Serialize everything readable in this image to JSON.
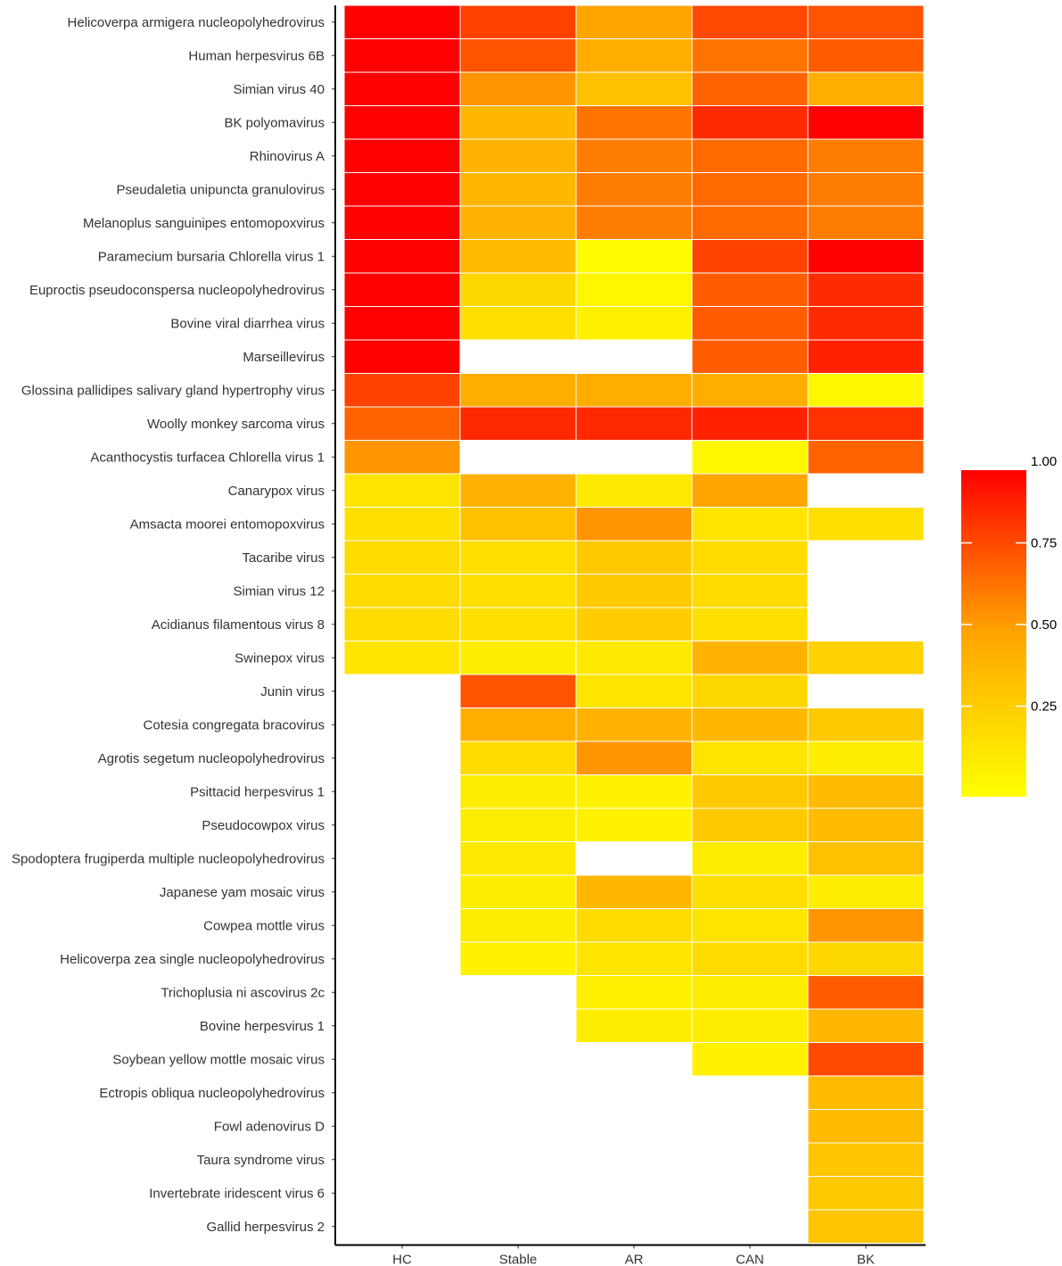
{
  "chart_data": {
    "type": "heatmap",
    "title": "",
    "xlabel": "",
    "ylabel": "",
    "columns": [
      "HC",
      "Stable",
      "AR",
      "CAN",
      "BK"
    ],
    "rows": [
      "Helicoverpa armigera nucleopolyhedrovirus",
      "Human herpesvirus 6B",
      "Simian virus 40",
      "BK polyomavirus",
      "Rhinovirus A",
      "Pseudaletia unipuncta granulovirus",
      "Melanoplus sanguinipes entomopoxvirus",
      "Paramecium bursaria Chlorella virus 1",
      "Euproctis pseudoconspersa nucleopolyhedrovirus",
      "Bovine viral diarrhea virus",
      "Marseillevirus",
      "Glossina pallidipes salivary gland hypertrophy virus",
      "Woolly monkey sarcoma virus",
      "Acanthocystis turfacea Chlorella virus 1",
      "Canarypox virus",
      "Amsacta moorei entomopoxvirus",
      "Tacaribe virus",
      "Simian virus 12",
      "Acidianus filamentous virus 8",
      "Swinepox virus",
      "Junin virus",
      "Cotesia congregata bracovirus",
      "Agrotis segetum nucleopolyhedrovirus",
      "Psittacid herpesvirus 1",
      "Pseudocowpox virus",
      "Spodoptera frugiperda multiple nucleopolyhedrovirus",
      "Japanese yam mosaic virus",
      "Cowpea mottle virus",
      "Helicoverpa zea single nucleopolyhedrovirus",
      "Trichoplusia ni ascovirus 2c",
      "Bovine herpesvirus 1",
      "Soybean yellow mottle mosaic virus",
      "Ectropis obliqua nucleopolyhedrovirus",
      "Fowl adenovirus D",
      "Taura syndrome virus",
      "Invertebrate iridescent virus 6",
      "Gallid herpesvirus 2"
    ],
    "values": [
      [
        1.0,
        0.8,
        0.5,
        0.78,
        0.75
      ],
      [
        1.0,
        0.75,
        0.45,
        0.65,
        0.72
      ],
      [
        1.0,
        0.55,
        0.35,
        0.7,
        0.45
      ],
      [
        1.0,
        0.4,
        0.65,
        0.87,
        1.0
      ],
      [
        1.0,
        0.42,
        0.62,
        0.68,
        0.62
      ],
      [
        1.0,
        0.4,
        0.62,
        0.68,
        0.62
      ],
      [
        1.0,
        0.42,
        0.62,
        0.68,
        0.62
      ],
      [
        1.0,
        0.38,
        0.02,
        0.8,
        1.0
      ],
      [
        1.0,
        0.22,
        0.05,
        0.72,
        0.87
      ],
      [
        1.0,
        0.18,
        0.08,
        0.72,
        0.87
      ],
      [
        1.0,
        null,
        null,
        0.72,
        0.9
      ],
      [
        0.8,
        0.45,
        0.45,
        0.45,
        0.05
      ],
      [
        0.7,
        0.88,
        0.88,
        0.9,
        0.85
      ],
      [
        0.55,
        null,
        null,
        0.05,
        0.7
      ],
      [
        0.15,
        0.42,
        0.12,
        0.5,
        null
      ],
      [
        0.18,
        0.35,
        0.55,
        0.15,
        0.18
      ],
      [
        0.2,
        0.18,
        0.3,
        0.2,
        null
      ],
      [
        0.2,
        0.18,
        0.3,
        0.2,
        null
      ],
      [
        0.2,
        0.18,
        0.28,
        0.18,
        null
      ],
      [
        0.15,
        0.1,
        0.12,
        0.42,
        0.25
      ],
      [
        null,
        0.75,
        0.15,
        0.22,
        null
      ],
      [
        null,
        0.45,
        0.42,
        0.4,
        0.3
      ],
      [
        null,
        0.2,
        0.55,
        0.15,
        0.1
      ],
      [
        null,
        0.1,
        0.08,
        0.3,
        0.38
      ],
      [
        null,
        0.1,
        0.08,
        0.3,
        0.38
      ],
      [
        null,
        0.12,
        null,
        0.1,
        0.35
      ],
      [
        null,
        0.1,
        0.4,
        0.18,
        0.1
      ],
      [
        null,
        0.1,
        0.2,
        0.15,
        0.55
      ],
      [
        null,
        0.08,
        0.15,
        0.2,
        0.22
      ],
      [
        null,
        null,
        0.08,
        0.1,
        0.72
      ],
      [
        null,
        null,
        0.1,
        0.1,
        0.4
      ],
      [
        null,
        null,
        null,
        0.08,
        0.78
      ],
      [
        null,
        null,
        null,
        null,
        0.38
      ],
      [
        null,
        null,
        null,
        null,
        0.38
      ],
      [
        null,
        null,
        null,
        null,
        0.32
      ],
      [
        null,
        null,
        null,
        null,
        0.3
      ],
      [
        null,
        null,
        null,
        null,
        0.32
      ]
    ],
    "color_scale": {
      "low_color": "#ffff00",
      "mid_color": "#ffa500",
      "high_color": "#ff0000",
      "range": [
        0,
        1
      ]
    },
    "legend": {
      "position": "right",
      "ticks": [
        "1.00",
        "0.75",
        "0.50",
        "0.25"
      ],
      "tick_values": [
        1.0,
        0.75,
        0.5,
        0.25
      ]
    },
    "grid": false
  }
}
